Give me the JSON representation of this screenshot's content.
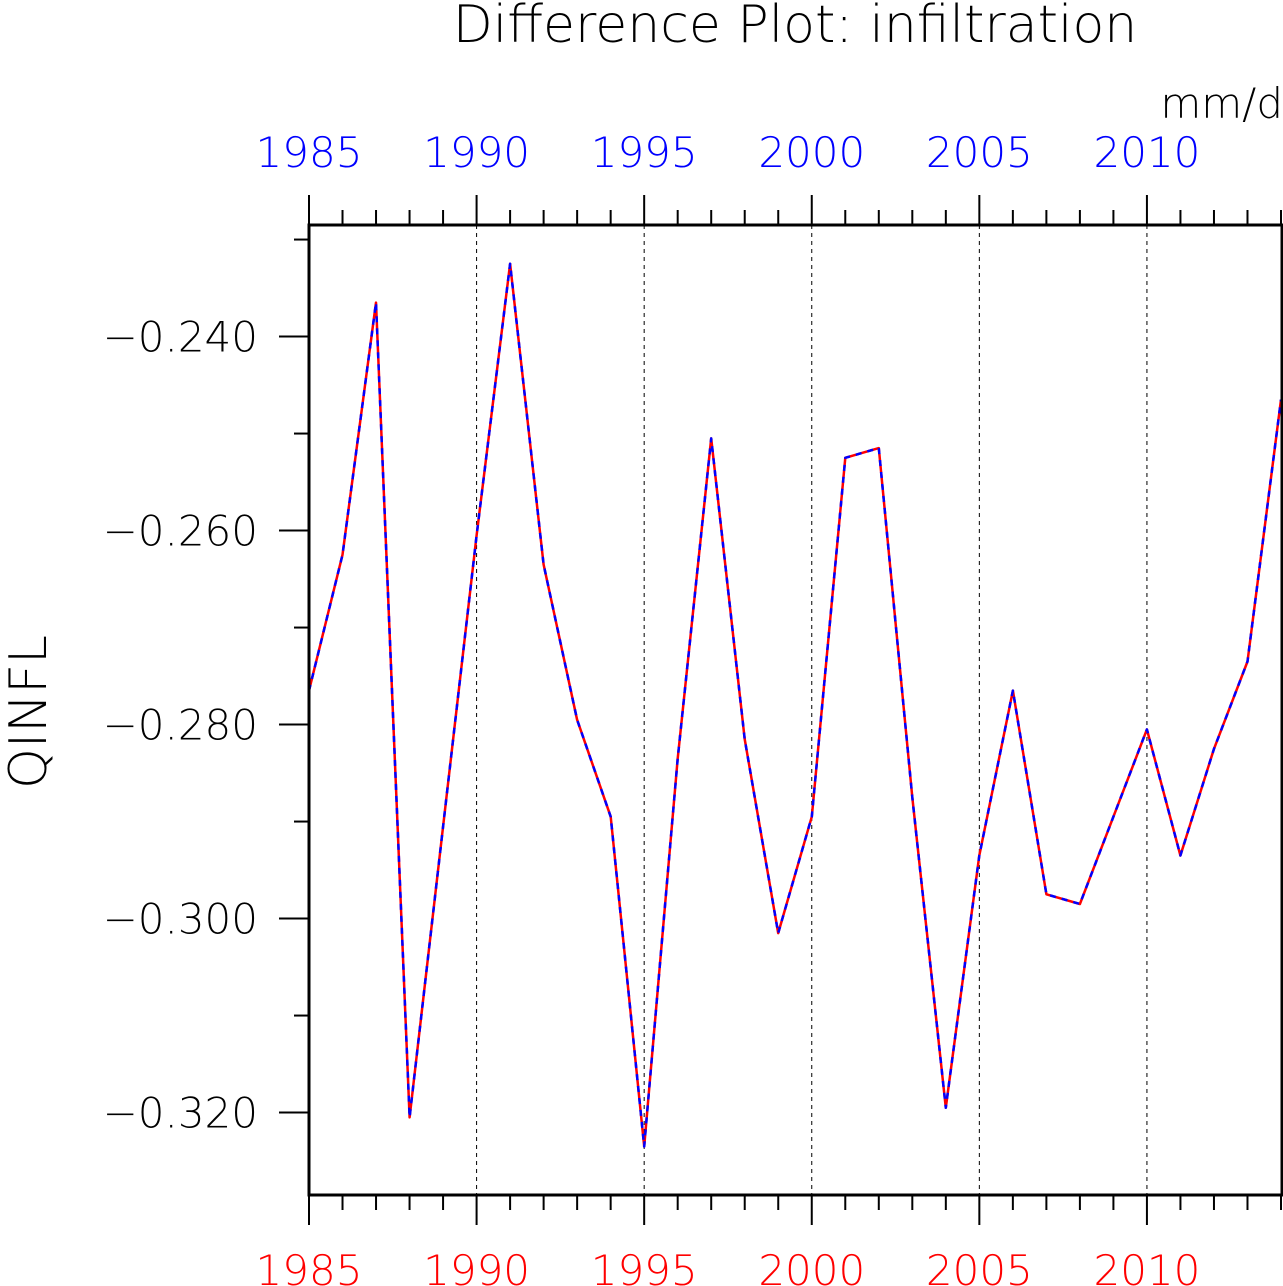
{
  "chart_data": {
    "type": "line",
    "title": "Difference Plot: infiltration",
    "units": "mm/d",
    "ylabel": "QINFL",
    "xlim": [
      1985,
      2014
    ],
    "ylim": [
      -0.3285,
      -0.2285
    ],
    "x_ticks": [
      1985,
      1990,
      1995,
      2000,
      2005,
      2010
    ],
    "x_tick_labels": [
      "1985",
      "1990",
      "1995",
      "2000",
      "2005",
      "2010"
    ],
    "y_ticks": [
      -0.24,
      -0.26,
      -0.28,
      -0.3,
      -0.32
    ],
    "y_tick_labels": [
      "−0.240",
      "−0.260",
      "−0.280",
      "−0.300",
      "−0.320"
    ],
    "grid": "vertical dashed at major x ticks",
    "x": [
      1985,
      1986,
      1987,
      1988,
      1989,
      1990,
      1991,
      1992,
      1993,
      1994,
      1995,
      1996,
      1997,
      1998,
      1999,
      2000,
      2001,
      2002,
      2003,
      2004,
      2005,
      2006,
      2007,
      2008,
      2009,
      2010,
      2011,
      2012,
      2013,
      2014
    ],
    "series": [
      {
        "color": "#ff0000",
        "style": "solid",
        "values": [
          -0.2765,
          -0.2625,
          -0.2365,
          -0.3205,
          -0.2905,
          -0.2605,
          -0.2325,
          -0.2635,
          -0.2795,
          -0.2895,
          -0.3235,
          -0.2835,
          -0.2505,
          -0.2815,
          -0.3015,
          -0.2895,
          -0.2525,
          -0.2515,
          -0.2875,
          -0.3195,
          -0.2935,
          -0.2765,
          -0.2975,
          -0.2985,
          -0.2895,
          -0.2805,
          -0.2935,
          -0.2825,
          -0.2735,
          -0.2465
        ]
      },
      {
        "color": "#0000ff",
        "style": "dashed",
        "values": [
          -0.2765,
          -0.2625,
          -0.2365,
          -0.3205,
          -0.2905,
          -0.2605,
          -0.2325,
          -0.2635,
          -0.2795,
          -0.2895,
          -0.3235,
          -0.2835,
          -0.2505,
          -0.2815,
          -0.3015,
          -0.2895,
          -0.2525,
          -0.2515,
          -0.2875,
          -0.3195,
          -0.2935,
          -0.2765,
          -0.2975,
          -0.2985,
          -0.2895,
          -0.2805,
          -0.2935,
          -0.2825,
          -0.2735,
          -0.2465
        ]
      }
    ],
    "colors": {
      "top_axis_labels": "#0000ff",
      "bottom_axis_labels": "#ff0000",
      "text": "#000000"
    }
  }
}
